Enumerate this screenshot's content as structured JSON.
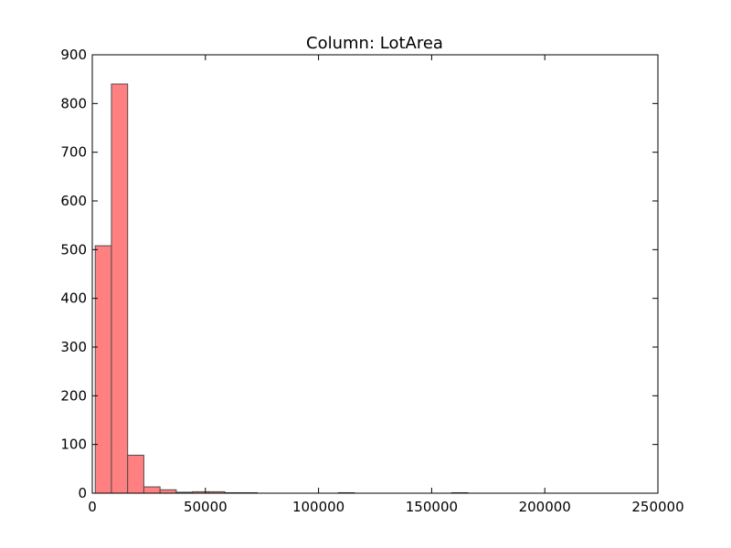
{
  "chart_data": {
    "type": "bar",
    "title": "Column: LotArea",
    "xlabel": "",
    "ylabel": "",
    "xlim": [
      0,
      250000
    ],
    "ylim": [
      0,
      900
    ],
    "x_ticks": [
      0,
      50000,
      100000,
      150000,
      200000,
      250000
    ],
    "x_tick_labels": [
      "0",
      "50000",
      "100000",
      "150000",
      "200000",
      "250000"
    ],
    "y_ticks": [
      0,
      100,
      200,
      300,
      400,
      500,
      600,
      700,
      800,
      900
    ],
    "y_tick_labels": [
      "0",
      "100",
      "200",
      "300",
      "400",
      "500",
      "600",
      "700",
      "800",
      "900"
    ],
    "bin_width": 7161,
    "bin_start": 1300,
    "values": [
      508,
      840,
      78,
      13,
      7,
      2,
      3,
      3,
      1,
      1,
      0,
      0,
      0,
      0,
      0,
      1,
      0,
      0,
      0,
      0,
      0,
      0,
      1
    ],
    "grid": false,
    "bar_color": "#ff8080",
    "edge_color": "#4d4d4d"
  }
}
